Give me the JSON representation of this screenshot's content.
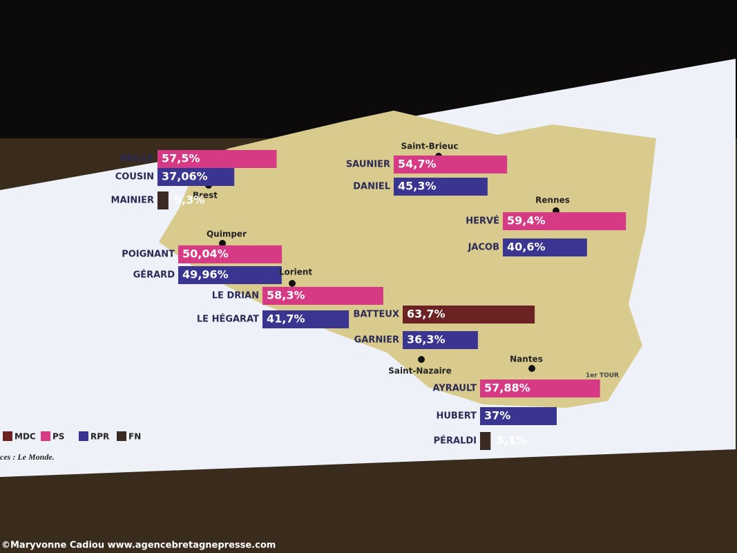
{
  "legend": [
    {
      "name": "MDC",
      "color": "#6a2222"
    },
    {
      "name": "PS",
      "color": "#d63a84"
    },
    {
      "name": "RPR",
      "color": "#3a3590"
    },
    {
      "name": "FN",
      "color": "#3a2a22"
    }
  ],
  "cities": [
    {
      "name": "Brest",
      "candidates": [
        {
          "name": "PAILLE",
          "party": "PS",
          "value": 57.5,
          "label": "57,5%"
        },
        {
          "name": "COUSIN",
          "party": "RPR",
          "value": 37.06,
          "label": "37,06%"
        },
        {
          "name": "MAINIER",
          "party": "FN",
          "value": 5.3,
          "label": "5,3%"
        }
      ]
    },
    {
      "name": "Quimper",
      "candidates": [
        {
          "name": "POIGNANT",
          "party": "PS",
          "value": 50.04,
          "label": "50,04%"
        },
        {
          "name": "GÉRARD",
          "party": "RPR",
          "value": 49.96,
          "label": "49,96%"
        }
      ]
    },
    {
      "name": "Lorient",
      "candidates": [
        {
          "name": "LE DRIAN",
          "party": "PS",
          "value": 58.3,
          "label": "58,3%"
        },
        {
          "name": "LE HÉGARAT",
          "party": "RPR",
          "value": 41.7,
          "label": "41,7%"
        }
      ]
    },
    {
      "name": "Saint-Brieuc",
      "candidates": [
        {
          "name": "SAUNIER",
          "party": "PS",
          "value": 54.7,
          "label": "54,7%"
        },
        {
          "name": "DANIEL",
          "party": "RPR",
          "value": 45.3,
          "label": "45,3%"
        }
      ]
    },
    {
      "name": "Rennes",
      "candidates": [
        {
          "name": "HERVÉ",
          "party": "PS",
          "value": 59.4,
          "label": "59,4%"
        },
        {
          "name": "JACOB",
          "party": "RPR",
          "value": 40.6,
          "label": "40,6%"
        }
      ]
    },
    {
      "name": "Saint-Nazaire",
      "candidates": [
        {
          "name": "BATTEUX",
          "party": "MDC",
          "value": 63.7,
          "label": "63,7%"
        },
        {
          "name": "GARNIER",
          "party": "RPR",
          "value": 36.3,
          "label": "36,3%"
        }
      ]
    },
    {
      "name": "Nantes",
      "note": "1er TOUR",
      "candidates": [
        {
          "name": "AYRAULT",
          "party": "PS",
          "value": 57.88,
          "label": "57,88%"
        },
        {
          "name": "HUBERT",
          "party": "RPR",
          "value": 37,
          "label": "37%"
        },
        {
          "name": "PÉRALDI",
          "party": "FN",
          "value": 5.1,
          "label": "5,1%"
        }
      ]
    }
  ],
  "source": "ces : Le Monde.",
  "credit": "©Maryvonne Cadiou   www.agencebretagnepresse.com"
}
